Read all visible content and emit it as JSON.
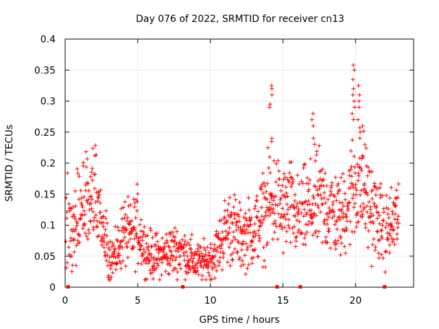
{
  "chart_data": {
    "type": "scatter",
    "title": "Day 076 of 2022, SRMTID for receiver cn13",
    "xlabel": "GPS time / hours",
    "ylabel": "SRMTID / TECUs",
    "xlim": [
      0,
      24
    ],
    "ylim": [
      0,
      0.4
    ],
    "x_ticks": [
      0,
      5,
      10,
      15,
      20
    ],
    "x_tick_labels": [
      "0",
      "5",
      "10",
      "15",
      "20"
    ],
    "y_ticks": [
      0,
      0.05,
      0.1,
      0.15,
      0.2,
      0.25,
      0.3,
      0.35,
      0.4
    ],
    "y_tick_labels": [
      "0",
      "0.05",
      "0.1",
      "0.15",
      "0.2",
      "0.25",
      "0.3",
      "0.35",
      "0.4"
    ],
    "grid": true,
    "marker": "plus",
    "color": "#ff0000",
    "data_gap_markers_x": [
      0.2,
      8.1,
      14.6,
      16.2,
      22.0
    ],
    "trend": {
      "x": [
        0,
        0.5,
        1,
        1.5,
        2,
        2.5,
        3,
        3.5,
        4,
        4.5,
        5,
        5.5,
        6,
        6.5,
        7,
        7.5,
        8,
        8.5,
        9,
        9.5,
        10,
        10.5,
        11,
        11.5,
        12,
        12.5,
        13,
        13.5,
        14,
        14.5,
        15,
        15.5,
        16,
        16.5,
        17,
        17.5,
        18,
        18.5,
        19,
        19.5,
        20,
        20.5,
        21,
        21.5,
        22,
        22.5,
        23
      ],
      "y": [
        0.11,
        0.1,
        0.13,
        0.12,
        0.14,
        0.1,
        0.05,
        0.05,
        0.09,
        0.08,
        0.1,
        0.06,
        0.05,
        0.05,
        0.055,
        0.06,
        0.06,
        0.05,
        0.04,
        0.04,
        0.045,
        0.06,
        0.09,
        0.1,
        0.08,
        0.085,
        0.09,
        0.11,
        0.13,
        0.14,
        0.12,
        0.13,
        0.11,
        0.12,
        0.13,
        0.14,
        0.13,
        0.12,
        0.11,
        0.14,
        0.17,
        0.16,
        0.13,
        0.11,
        0.09,
        0.1,
        0.12
      ]
    },
    "spikes": [
      {
        "x": 14.15,
        "values": [
          0.32,
          0.325,
          0.31,
          0.295,
          0.29,
          0.24,
          0.235,
          0.21
        ]
      },
      {
        "x": 17.05,
        "values": [
          0.28,
          0.27,
          0.26,
          0.24
        ]
      },
      {
        "x": 19.85,
        "values": [
          0.358,
          0.35,
          0.335,
          0.32,
          0.31,
          0.3,
          0.29,
          0.28,
          0.27
        ]
      },
      {
        "x": 20.25,
        "values": [
          0.325,
          0.31,
          0.3,
          0.29,
          0.27,
          0.25,
          0.24
        ]
      },
      {
        "x": 20.55,
        "values": [
          0.26,
          0.23,
          0.21
        ]
      }
    ]
  }
}
